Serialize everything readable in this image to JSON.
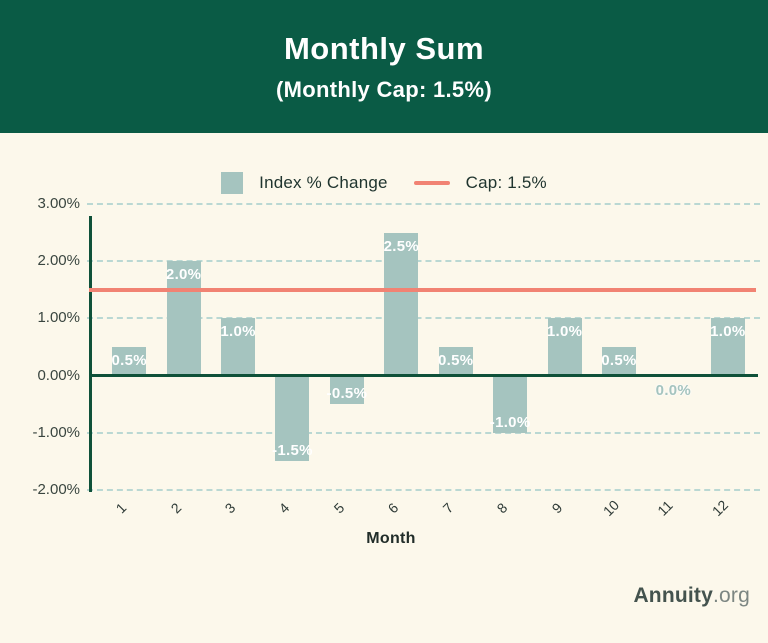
{
  "header": {
    "title": "Monthly Sum",
    "subtitle": "(Monthly Cap: 1.5%)"
  },
  "legend": {
    "items": [
      {
        "label": "Index % Change",
        "marker": "square-swatch"
      },
      {
        "label": "Cap: 1.5%",
        "marker": "line-swatch"
      }
    ]
  },
  "chart_data": {
    "type": "bar",
    "title": "Monthly Sum",
    "subtitle": "(Monthly Cap: 1.5%)",
    "series_name": "Index % Change",
    "categories": [
      "1",
      "2",
      "3",
      "4",
      "5",
      "6",
      "7",
      "8",
      "9",
      "10",
      "11",
      "12"
    ],
    "values": [
      0.5,
      2.0,
      1.0,
      -1.5,
      -0.5,
      2.5,
      0.5,
      -1.0,
      1.0,
      0.5,
      0.0,
      1.0
    ],
    "value_labels": [
      "0.5%",
      "2.0%",
      "1.0%",
      "-1.5%",
      "-0.5%",
      "2.5%",
      "0.5%",
      "-1.0%",
      "1.0%",
      "0.5%",
      "0.0%",
      "1.0%"
    ],
    "cap_line": {
      "value": 1.5,
      "label": "Cap: 1.5%"
    },
    "xlabel": "Month",
    "ylabel": "",
    "ylim": [
      -2,
      3
    ],
    "yticks": [
      {
        "value": 3,
        "label": "3.00%"
      },
      {
        "value": 2,
        "label": "2.00%"
      },
      {
        "value": 1,
        "label": "1.00%"
      },
      {
        "value": 0,
        "label": "0.00%"
      },
      {
        "value": -1,
        "label": "-1.00%"
      },
      {
        "value": -2,
        "label": "-2.00%"
      }
    ],
    "grid": true,
    "legend_position": "top"
  },
  "colors": {
    "header_bg": "#0a5b45",
    "background": "#fcf8eb",
    "bar_fill": "#a5c4bf",
    "cap_line": "#f18373",
    "axis": "#0f5139",
    "gridline": "#bad8d3",
    "bar_label": "#ffffff",
    "zero_bar_label": "#a5c4bf"
  },
  "footer": {
    "brand_bold": "Annuity",
    "brand_light": ".org"
  }
}
